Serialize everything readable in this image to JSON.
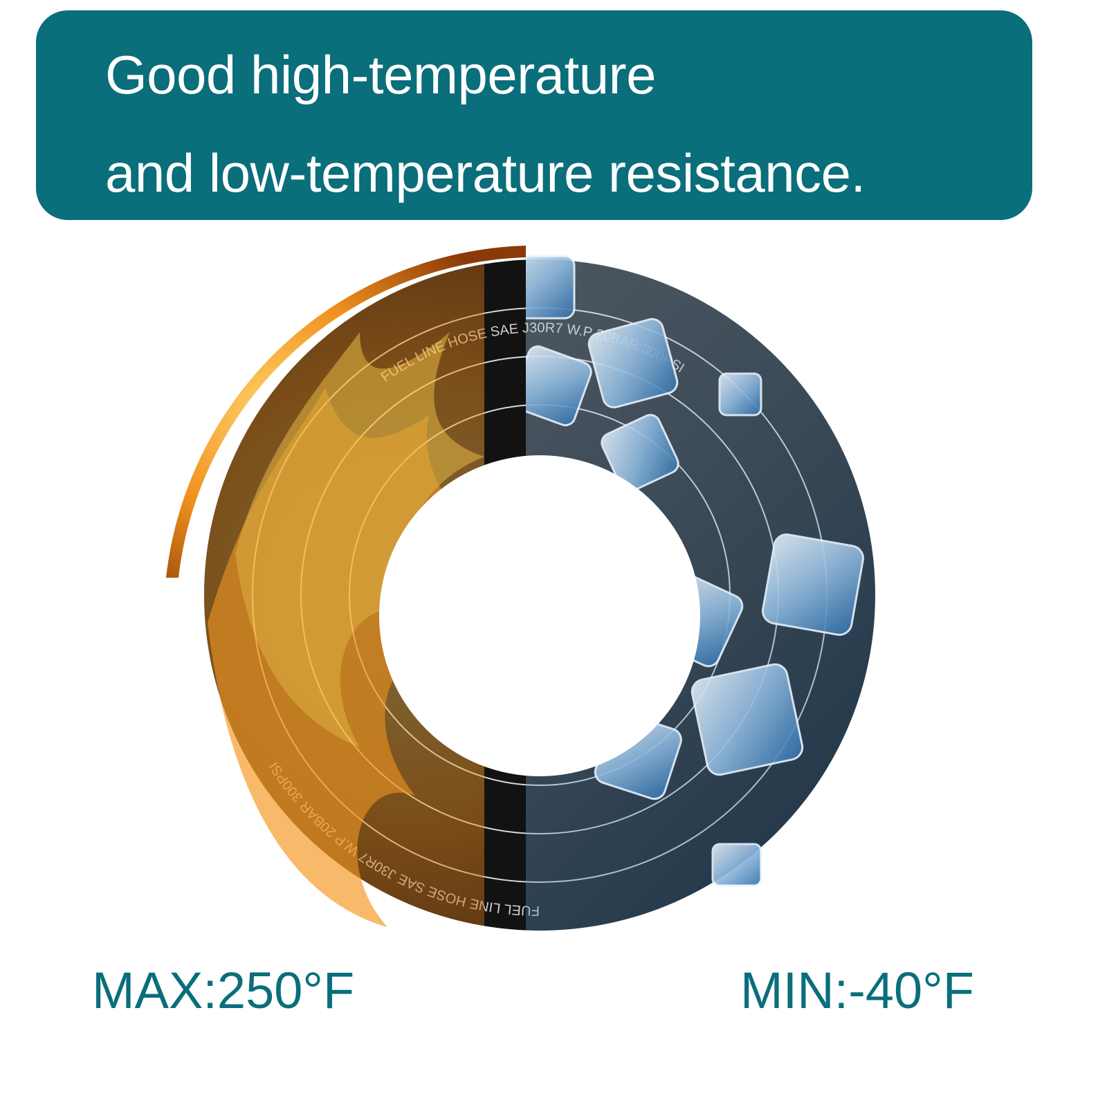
{
  "banner": {
    "line1": "Good high-temperature",
    "line2": "and low-temperature resistance."
  },
  "product_image": {
    "hose_print": "FUEL LINE HOSE SAE J30R7 W.P 20BAR 300PSI",
    "hot_side": "flame-icon",
    "cold_side": "ice-cube-icon"
  },
  "specs": {
    "max": "MAX:250°F",
    "min": "MIN:-40°F"
  },
  "colors": {
    "brand_teal": "#0a6e7b",
    "hose": "#111111",
    "flame": "#f0901e",
    "ice": "#8fb9de"
  }
}
